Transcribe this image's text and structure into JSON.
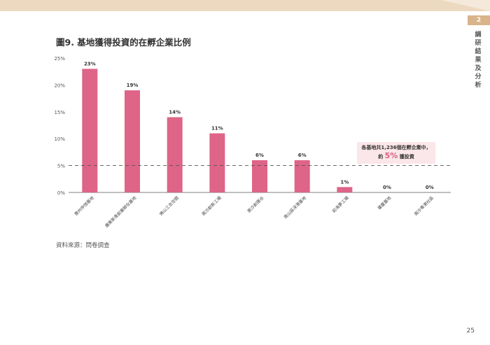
{
  "header": {
    "section_number": "2",
    "section_label": "調研結果及分析",
    "page_number": "25"
  },
  "figure": {
    "title": "圖9. 基地獲得投資的在孵企業比例",
    "source": "資料來源：問卷調查",
    "callout": {
      "line1": "各基地共1,236個在孵企業中，",
      "line2_prefix": "約",
      "line2_value": "5%",
      "line2_suffix": "獲投資"
    }
  },
  "colors": {
    "bar": "#de6488",
    "callout_bg": "#fbe6e9",
    "highlight": "#d9607f"
  },
  "chart_data": {
    "type": "bar",
    "categories": [
      "惠州仲愷基地",
      "廣東新青創業孵化基地",
      "佛山工合空間",
      "南沙創新工場",
      "南沙創匯谷",
      "南山區深港基地",
      "前海夢工場",
      "肇慶基地",
      "南沙粵港社區"
    ],
    "values": [
      23,
      19,
      14,
      11,
      6,
      6,
      1,
      0,
      0
    ],
    "data_labels": [
      "23%",
      "19%",
      "14%",
      "11%",
      "6%",
      "6%",
      "1%",
      "0%",
      "0%"
    ],
    "yticks": [
      "0%",
      "5%",
      "10%",
      "15%",
      "20%",
      "25%"
    ],
    "ylim": [
      0,
      25
    ],
    "reference_line": 5,
    "grid": false
  }
}
